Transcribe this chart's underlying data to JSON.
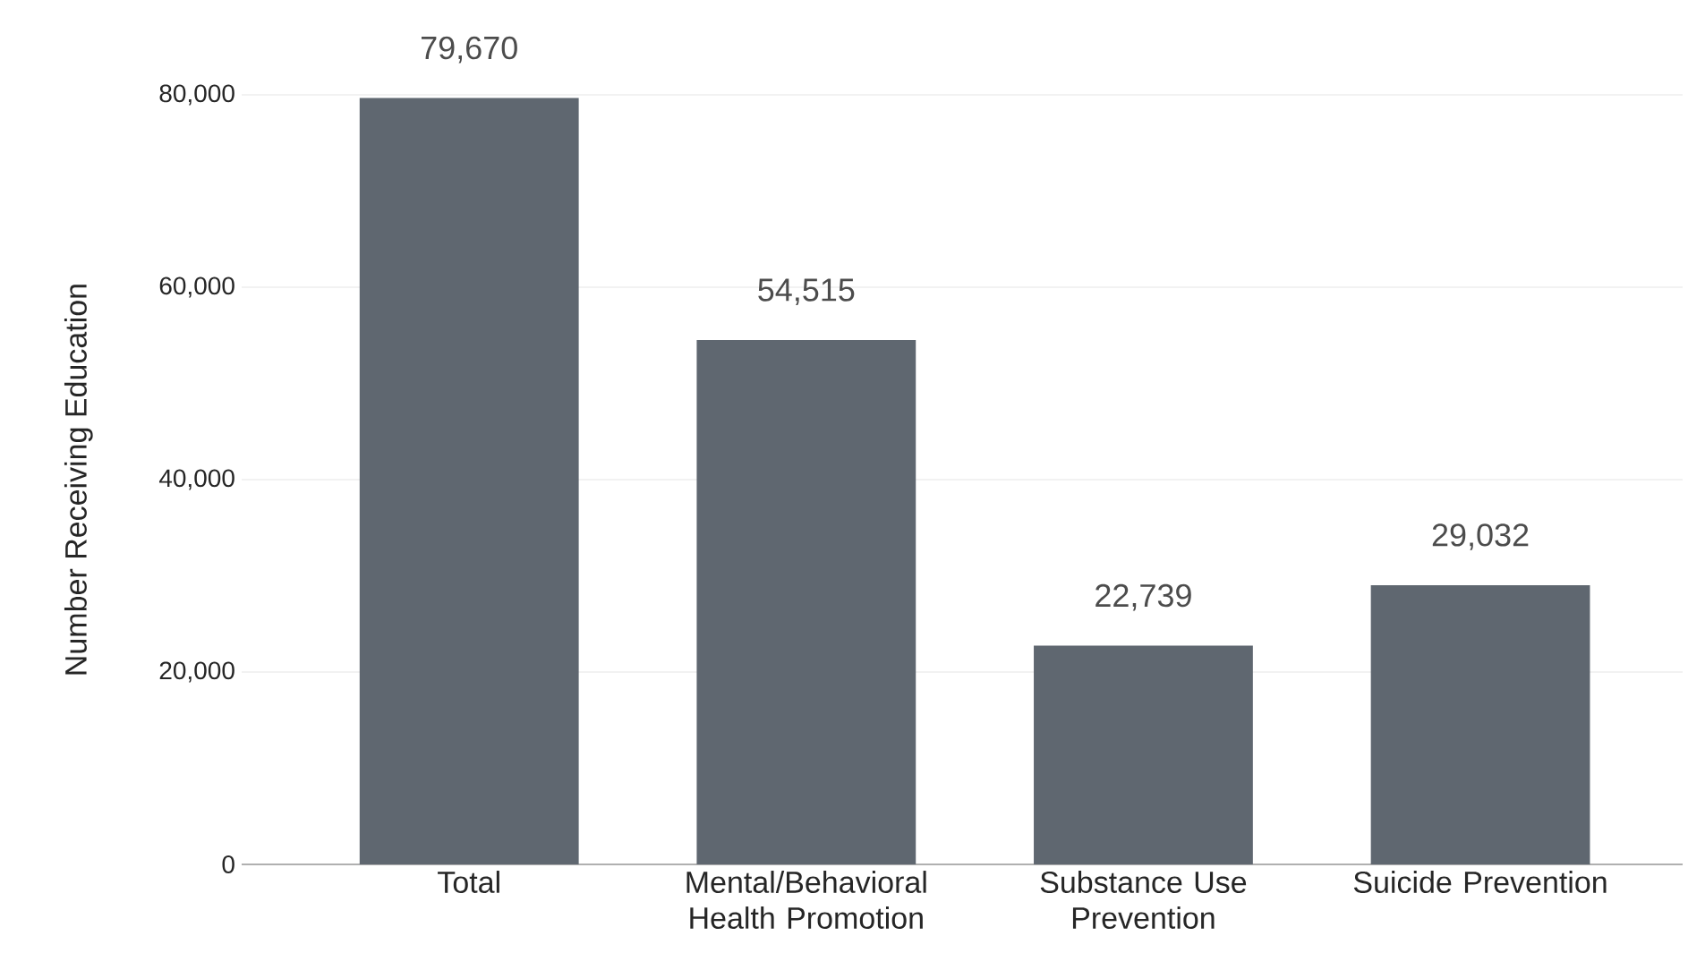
{
  "chart_data": {
    "type": "bar",
    "ylabel": "Number Receiving Education",
    "categories": [
      "Total",
      "Mental/Behavioral Health Promotion",
      "Substance Use Prevention",
      "Suicide Prevention"
    ],
    "values": [
      79670,
      54515,
      22739,
      29032
    ],
    "value_labels": [
      "79,670",
      "54,515",
      "22,739",
      "29,032"
    ],
    "color": "#5f6770",
    "ylim": [
      0,
      80000
    ],
    "yticks": [
      {
        "value": 0,
        "label": "0"
      },
      {
        "value": 20000,
        "label": "20,000"
      },
      {
        "value": 40000,
        "label": "40,000"
      },
      {
        "value": 60000,
        "label": "60,000"
      },
      {
        "value": 80000,
        "label": "80,000"
      }
    ],
    "grid": "y"
  }
}
